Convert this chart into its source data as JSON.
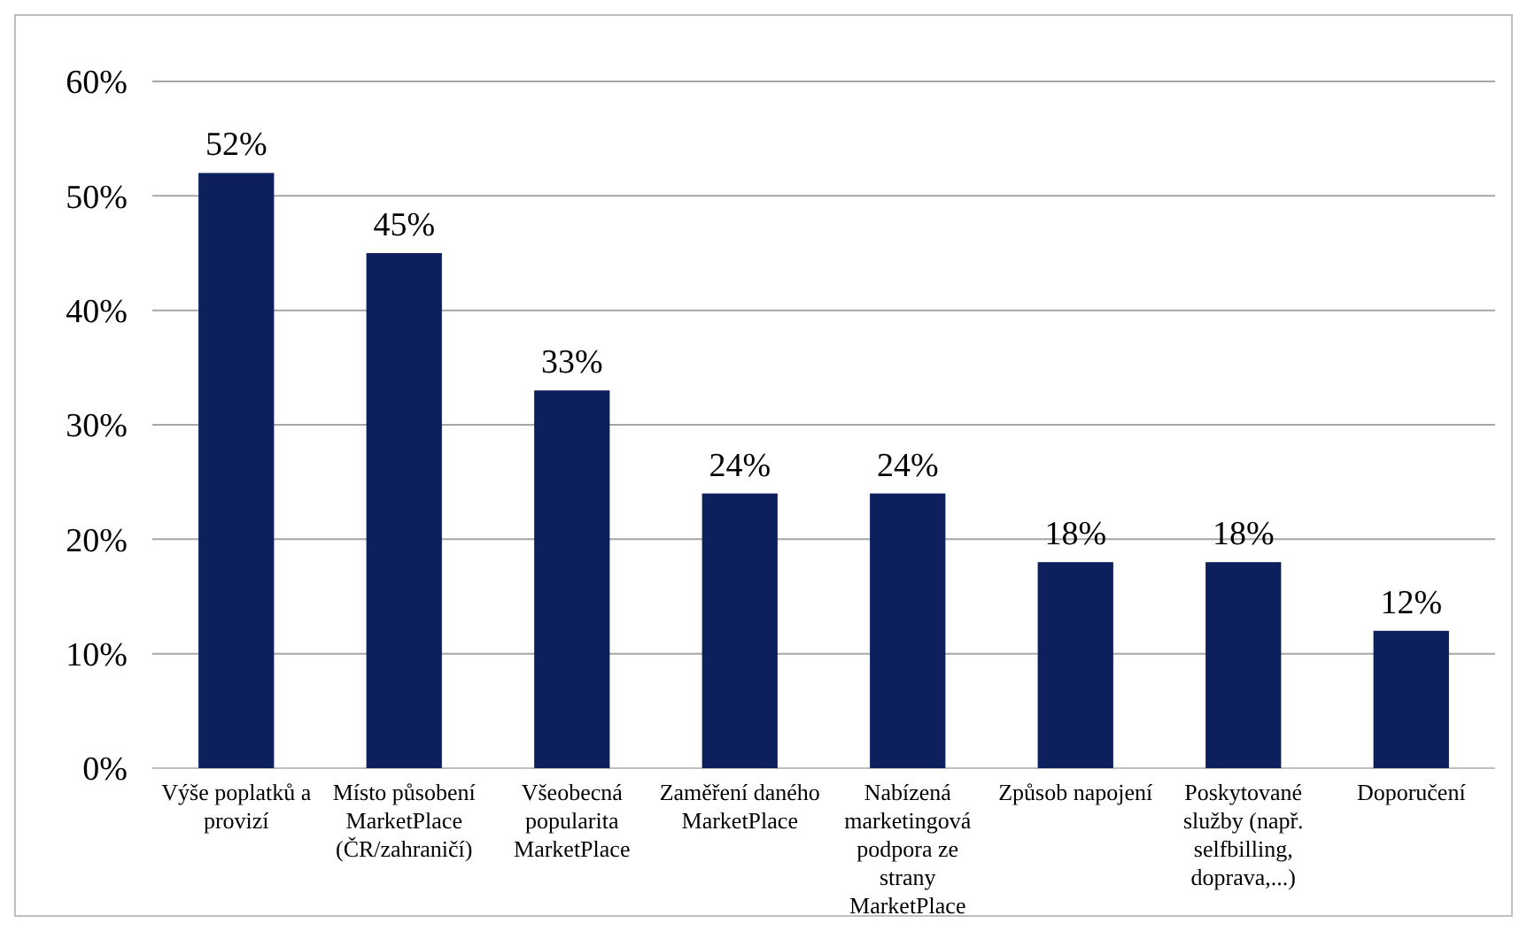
{
  "chart_data": {
    "type": "bar",
    "categories": [
      "Výše poplatků a provizí",
      "Místo působení MarketPlace (ČR/zahraničí)",
      "Všeobecná popularita MarketPlace",
      "Zaměření daného MarketPlace",
      "Nabízená marketingová podpora ze strany MarketPlace",
      "Způsob napojení",
      "Poskytované služby (např. selfbilling, doprava,...)",
      "Doporučení"
    ],
    "values": [
      52,
      45,
      33,
      24,
      24,
      18,
      18,
      12
    ],
    "value_labels": [
      "52%",
      "45%",
      "33%",
      "24%",
      "24%",
      "18%",
      "18%",
      "12%"
    ],
    "color": "#0d1f5c",
    "ylim": [
      0,
      60
    ],
    "yticks": [
      {
        "value": 0,
        "label": "0%"
      },
      {
        "value": 10,
        "label": "10%"
      },
      {
        "value": 20,
        "label": "20%"
      },
      {
        "value": 30,
        "label": "30%"
      },
      {
        "value": 40,
        "label": "40%"
      },
      {
        "value": 50,
        "label": "50%"
      },
      {
        "value": 60,
        "label": "60%"
      }
    ],
    "grid": "y"
  }
}
